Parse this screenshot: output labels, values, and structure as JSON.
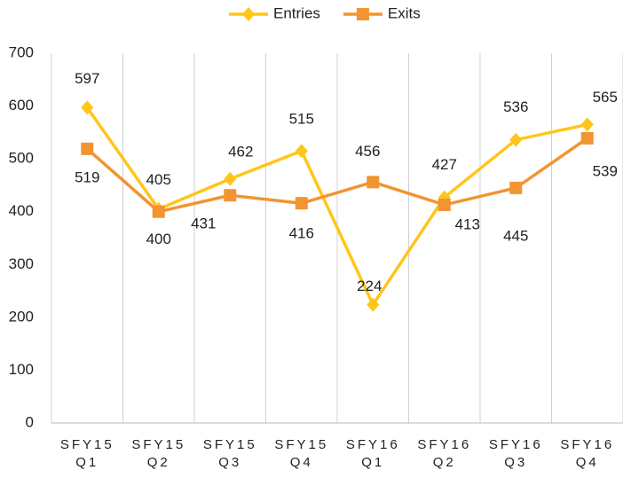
{
  "chart_data": {
    "type": "line",
    "categories": [
      "SFY15 Q1",
      "SFY15 Q2",
      "SFY15 Q3",
      "SFY15 Q4",
      "SFY16 Q1",
      "SFY16 Q2",
      "SFY16 Q3",
      "SFY16 Q4"
    ],
    "series": [
      {
        "name": "Entries",
        "color": "#ffc61a",
        "marker": "diamond",
        "values": [
          597,
          405,
          462,
          515,
          224,
          427,
          536,
          565
        ]
      },
      {
        "name": "Exits",
        "color": "#f29430",
        "marker": "square",
        "values": [
          519,
          400,
          431,
          416,
          456,
          413,
          445,
          539
        ]
      }
    ],
    "ylim": [
      0,
      700
    ],
    "yticks": [
      0,
      100,
      200,
      300,
      400,
      500,
      600,
      700
    ],
    "legend": "top"
  }
}
